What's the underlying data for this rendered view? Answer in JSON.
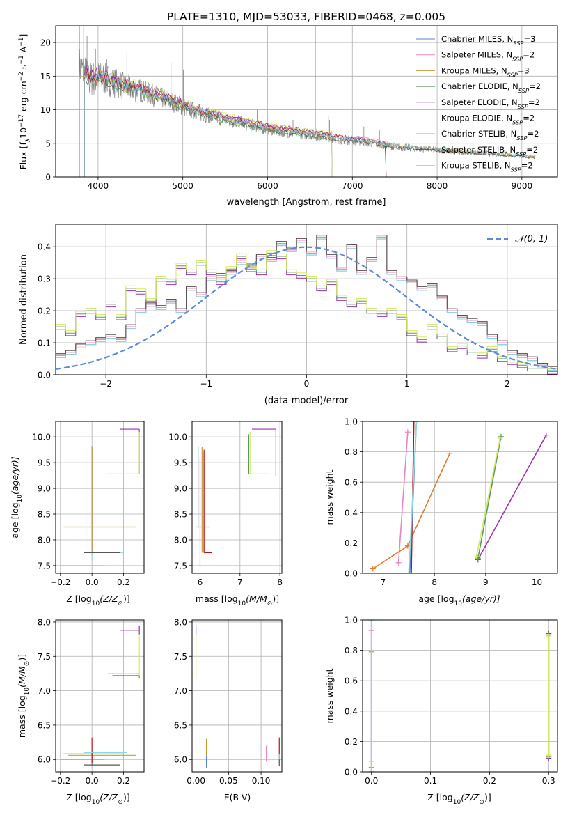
{
  "figure_title": "PLATE=1310, MJD=53033, FIBERID=0468, z=0.005",
  "colors": {
    "s0": "#5a82c8",
    "s1": "#e885c5",
    "s2": "#c89a3a",
    "s3": "#5a9a5a",
    "s4": "#9b30b0",
    "s5": "#d8e860",
    "s6": "#555555",
    "s7": "#b01818",
    "s8": "#8ed8e0",
    "data": "#808080",
    "gauss": "#5a8ad8",
    "orange": "#e07830"
  },
  "chart_data": [
    {
      "id": "spectrum",
      "type": "line",
      "xlabel": "wavelength [Angstrom, rest frame]",
      "ylabel_main": "Flux [f",
      "ylabel_sub": "λ",
      "ylabel_rest": "10",
      "ylabel_exp": "−17",
      "ylabel_unit": " erg cm",
      "ylabel_unit_exp": "−2",
      "ylabel_unit2": " s",
      "ylabel_unit2_exp": "−1",
      "ylabel_unit3": " A",
      "ylabel_unit3_exp": "−1",
      "ylabel_close": "]",
      "xlim": [
        3500,
        9420
      ],
      "ylim": [
        0,
        22.5
      ],
      "xticks": [
        4000,
        5000,
        6000,
        7000,
        8000,
        9000
      ],
      "yticks": [
        0,
        5,
        10,
        15,
        20
      ],
      "legend_position": "top-right",
      "legend": [
        {
          "prefix": "Chabrier MILES, N",
          "sub": "SSP",
          "suffix": "=3"
        },
        {
          "prefix": "Salpeter MILES, N",
          "sub": "SSP",
          "suffix": "=2"
        },
        {
          "prefix": "Kroupa MILES, N",
          "sub": "SSP",
          "suffix": "=3"
        },
        {
          "prefix": "Chabrier ELODIE, N",
          "sub": "SSP",
          "suffix": "=2"
        },
        {
          "prefix": "Salpeter ELODIE, N",
          "sub": "SSP",
          "suffix": "=2"
        },
        {
          "prefix": "Kroupa ELODIE, N",
          "sub": "SSP",
          "suffix": "=2"
        },
        {
          "prefix": "Chabrier STELIB, N",
          "sub": "SSP",
          "suffix": "=2"
        },
        {
          "prefix": "Salpeter STELIB, N",
          "sub": "SSP",
          "suffix": "=2"
        },
        {
          "prefix": "Kroupa STELIB, N",
          "sub": "SSP",
          "suffix": "=2"
        }
      ],
      "continuum": [
        [
          3780,
          16.5
        ],
        [
          3900,
          14.5
        ],
        [
          4000,
          14.8
        ],
        [
          4100,
          14.5
        ],
        [
          4300,
          13.5
        ],
        [
          4500,
          12.8
        ],
        [
          4700,
          12.0
        ],
        [
          4900,
          11.0
        ],
        [
          5100,
          10.0
        ],
        [
          5300,
          9.2
        ],
        [
          5500,
          8.5
        ],
        [
          5700,
          8.0
        ],
        [
          5900,
          7.4
        ],
        [
          6100,
          6.9
        ],
        [
          6300,
          6.6
        ],
        [
          6500,
          6.3
        ],
        [
          6700,
          6.0
        ],
        [
          6900,
          5.5
        ],
        [
          7100,
          5.3
        ],
        [
          7300,
          4.9
        ],
        [
          7500,
          4.5
        ],
        [
          7800,
          4.2
        ],
        [
          8200,
          3.8
        ],
        [
          8600,
          3.5
        ],
        [
          9000,
          3.1
        ],
        [
          9160,
          2.9
        ]
      ],
      "noise_amp": [
        [
          3780,
          3.0
        ],
        [
          4500,
          1.8
        ],
        [
          5500,
          1.1
        ],
        [
          7000,
          0.7
        ],
        [
          9160,
          0.3
        ]
      ],
      "emission_lines": [
        [
          3800,
          22.5
        ],
        [
          3830,
          22.5
        ],
        [
          3870,
          21.0
        ],
        [
          3970,
          19.0
        ],
        [
          4102,
          17.5
        ],
        [
          4340,
          18.5
        ],
        [
          4861,
          17.0
        ],
        [
          4959,
          11.5
        ],
        [
          5007,
          16.0
        ],
        [
          5876,
          10.0
        ],
        [
          6300,
          8.5
        ],
        [
          6563,
          22.5
        ],
        [
          6583,
          20.5
        ],
        [
          6717,
          9.0
        ],
        [
          6731,
          8.5
        ],
        [
          7136,
          7.5
        ],
        [
          7320,
          7.0
        ]
      ],
      "model_ranges": [
        [
          3840,
          7400
        ],
        [
          3840,
          7400
        ],
        [
          3840,
          9160
        ],
        [
          3840,
          6760
        ],
        [
          3840,
          6760
        ],
        [
          3840,
          6760
        ],
        [
          3840,
          9160
        ],
        [
          3840,
          7400
        ],
        [
          3840,
          9160
        ]
      ],
      "model_offsets": [
        0.3,
        0.5,
        0.1,
        -0.2,
        0.6,
        0.7,
        -0.1,
        0.4,
        0.2
      ]
    },
    {
      "id": "residuals",
      "type": "step-histogram",
      "xlabel": "(data-model)/error",
      "ylabel": "Normed distribution",
      "xlim": [
        -2.5,
        2.5
      ],
      "ylim": [
        0,
        0.47
      ],
      "xticks": [
        -2,
        -1,
        0,
        1,
        2
      ],
      "yticks": [
        0.0,
        0.1,
        0.2,
        0.3,
        0.4
      ],
      "legend_position": "top-right",
      "legend_label": "𝒩(0, 1)",
      "bin_edges_start": -2.5,
      "bin_width": 0.1,
      "hist_groupA": [
        0.06,
        0.07,
        0.09,
        0.1,
        0.11,
        0.12,
        0.11,
        0.15,
        0.2,
        0.22,
        0.21,
        0.23,
        0.2,
        0.27,
        0.25,
        0.3,
        0.31,
        0.32,
        0.35,
        0.34,
        0.37,
        0.36,
        0.41,
        0.39,
        0.42,
        0.38,
        0.43,
        0.37,
        0.33,
        0.4,
        0.32,
        0.36,
        0.43,
        0.32,
        0.3,
        0.29,
        0.27,
        0.28,
        0.24,
        0.2,
        0.18,
        0.17,
        0.16,
        0.12,
        0.1,
        0.07,
        0.06,
        0.05,
        0.03,
        0.02
      ],
      "hist_groupB": [
        0.15,
        0.13,
        0.19,
        0.2,
        0.18,
        0.22,
        0.18,
        0.27,
        0.26,
        0.23,
        0.3,
        0.29,
        0.34,
        0.32,
        0.35,
        0.32,
        0.29,
        0.33,
        0.37,
        0.33,
        0.32,
        0.38,
        0.37,
        0.32,
        0.31,
        0.3,
        0.27,
        0.29,
        0.24,
        0.22,
        0.23,
        0.2,
        0.19,
        0.2,
        0.18,
        0.13,
        0.11,
        0.15,
        0.12,
        0.08,
        0.09,
        0.07,
        0.06,
        0.08,
        0.05,
        0.04,
        0.03,
        0.02,
        0.02,
        0.01
      ]
    },
    {
      "id": "age_vs_Z",
      "type": "errorbar",
      "xlabel_main": "Z [log",
      "xlabel_sub": "10",
      "xlabel_rest": "(Z/Z",
      "xlabel_sun": "⊙",
      "xlabel_close": ")]",
      "ylabel_main": "age  [log",
      "ylabel_sub": "10",
      "ylabel_rest": "(age/yr)]",
      "xlim": [
        -0.23,
        0.33
      ],
      "ylim": [
        7.35,
        10.3
      ],
      "xticks": [
        -0.2,
        0.0,
        0.2
      ],
      "yticks": [
        7.5,
        8.0,
        8.5,
        9.0,
        9.5,
        10.0
      ],
      "bars": [
        {
          "c": "s0",
          "x": 0.0,
          "y": 9.82,
          "xl": 0.0,
          "xh": 0.0,
          "yl": 7.75,
          "yh": 9.82
        },
        {
          "c": "s2",
          "x": 0.0,
          "y": 8.25,
          "xl": -0.18,
          "xh": 0.28,
          "yl": 7.7,
          "yh": 9.8
        },
        {
          "c": "s1",
          "x": 0.0,
          "y": 7.5,
          "xl": -0.2,
          "xh": 0.08,
          "yl": 7.5,
          "yh": 7.5
        },
        {
          "c": "s8",
          "x": 0.0,
          "y": 7.75,
          "xl": -0.05,
          "xh": 0.2,
          "yl": 7.6,
          "yh": 7.75
        },
        {
          "c": "s4",
          "x": 0.3,
          "y": 10.15,
          "xl": 0.18,
          "xh": 0.3,
          "yl": 9.28,
          "yh": 10.15
        },
        {
          "c": "s5",
          "x": 0.3,
          "y": 9.28,
          "xl": 0.1,
          "xh": 0.3,
          "yl": 9.28,
          "yh": 10.1
        },
        {
          "c": "s6",
          "x": 0.0,
          "y": 7.75,
          "xl": -0.05,
          "xh": 0.18,
          "yl": 7.75,
          "yh": 7.75
        }
      ]
    },
    {
      "id": "age_vs_mass",
      "type": "errorbar",
      "xlabel_main": "mass [log",
      "xlabel_sub": "10",
      "xlabel_rest": "(M/M",
      "xlabel_sun": "⊙",
      "xlabel_close": ")]",
      "xlim": [
        5.8,
        8.05
      ],
      "ylim": [
        7.35,
        10.3
      ],
      "xticks": [
        6,
        7,
        8
      ],
      "yticks": [
        7.5,
        8.0,
        8.5,
        9.0,
        9.5,
        10.0
      ],
      "bars": [
        {
          "c": "s0",
          "x": 5.95,
          "y": 9.82,
          "xl": 5.95,
          "xh": 5.95,
          "yl": 8.25,
          "yh": 9.82
        },
        {
          "c": "s2",
          "x": 6.05,
          "y": 8.25,
          "xl": 5.9,
          "xh": 6.25,
          "yl": 7.75,
          "yh": 9.8
        },
        {
          "c": "s1",
          "x": 6.0,
          "y": 7.5,
          "xl": 6.0,
          "xh": 6.0,
          "yl": 7.5,
          "yh": 9.6
        },
        {
          "c": "s7",
          "x": 6.1,
          "y": 7.75,
          "xl": 6.1,
          "xh": 6.3,
          "yl": 7.75,
          "yh": 9.75
        },
        {
          "c": "s8",
          "x": 6.08,
          "y": 9.7,
          "xl": 6.08,
          "xh": 6.08,
          "yl": 7.75,
          "yh": 9.7
        },
        {
          "c": "s4",
          "x": 7.9,
          "y": 10.15,
          "xl": 7.3,
          "xh": 7.9,
          "yl": 9.25,
          "yh": 10.15
        },
        {
          "c": "s5",
          "x": 7.25,
          "y": 9.28,
          "xl": 7.25,
          "xh": 7.75,
          "yl": 9.28,
          "yh": 10.1
        },
        {
          "c": "s3",
          "x": 7.22,
          "y": 10.0,
          "xl": 7.22,
          "xh": 7.22,
          "yl": 9.28,
          "yh": 10.05
        }
      ]
    },
    {
      "id": "weight_vs_age",
      "type": "line",
      "xlabel_main": "age  [log",
      "xlabel_sub": "10",
      "xlabel_rest": "(age/yr)]",
      "ylabel": "mass weight",
      "xlim": [
        6.6,
        10.4
      ],
      "ylim": [
        0,
        1
      ],
      "xticks": [
        7,
        8,
        9,
        10
      ],
      "yticks": [
        0.0,
        0.2,
        0.4,
        0.6,
        0.8,
        1.0
      ],
      "lines": [
        {
          "c": "s1",
          "pts": [
            [
              7.3,
              0.07
            ],
            [
              7.48,
              0.93
            ]
          ]
        },
        {
          "c": "orange",
          "pts": [
            [
              6.8,
              0.03
            ],
            [
              7.48,
              0.18
            ],
            [
              8.3,
              0.79
            ]
          ]
        },
        {
          "c": "s7",
          "pts": [
            [
              7.55,
              0.0
            ],
            [
              7.6,
              1.0
            ]
          ]
        },
        {
          "c": "s0",
          "pts": [
            [
              7.52,
              0.0
            ],
            [
              7.65,
              1.0
            ]
          ]
        },
        {
          "c": "s8",
          "pts": [
            [
              7.5,
              0.0
            ],
            [
              7.65,
              1.0
            ]
          ]
        },
        {
          "c": "s4",
          "pts": [
            [
              8.85,
              0.09
            ],
            [
              10.18,
              0.91
            ]
          ]
        },
        {
          "c": "s3",
          "pts": [
            [
              8.85,
              0.1
            ],
            [
              9.3,
              0.9
            ]
          ]
        },
        {
          "c": "s5",
          "pts": [
            [
              8.82,
              0.11
            ],
            [
              9.28,
              0.89
            ]
          ]
        }
      ]
    },
    {
      "id": "mass_vs_Z",
      "type": "errorbar",
      "xlabel_main": "Z [log",
      "xlabel_sub": "10",
      "xlabel_rest": "(Z/Z",
      "xlabel_sun": "⊙",
      "xlabel_close": ")]",
      "ylabel_main": "mass [log",
      "ylabel_sub": "10",
      "ylabel_rest": "(M/M",
      "ylabel_sun": "⊙",
      "ylabel_close": ")]",
      "xlim": [
        -0.23,
        0.33
      ],
      "ylim": [
        5.82,
        8.03
      ],
      "xticks": [
        -0.2,
        0.0,
        0.2
      ],
      "yticks": [
        6.0,
        6.5,
        7.0,
        7.5,
        8.0
      ],
      "bars": [
        {
          "c": "s0",
          "x": 0.0,
          "y": 6.08,
          "xl": -0.18,
          "xh": 0.2,
          "yl": 5.9,
          "yh": 6.1
        },
        {
          "c": "s2",
          "x": 0.0,
          "y": 6.06,
          "xl": -0.15,
          "xh": 0.28,
          "yl": 6.0,
          "yh": 6.1
        },
        {
          "c": "s1",
          "x": 0.0,
          "y": 6.0,
          "xl": -0.2,
          "xh": 0.08,
          "yl": 6.0,
          "yh": 6.0
        },
        {
          "c": "s7",
          "x": 0.0,
          "y": 6.1,
          "xl": -0.05,
          "xh": 0.1,
          "yl": 5.95,
          "yh": 6.32
        },
        {
          "c": "s8",
          "x": 0.0,
          "y": 6.1,
          "xl": -0.05,
          "xh": 0.22,
          "yl": 6.1,
          "yh": 6.1
        },
        {
          "c": "s6",
          "x": 0.0,
          "y": 5.92,
          "xl": -0.05,
          "xh": 0.18,
          "yl": 5.92,
          "yh": 5.92
        },
        {
          "c": "s4",
          "x": 0.3,
          "y": 7.88,
          "xl": 0.18,
          "xh": 0.3,
          "yl": 7.82,
          "yh": 7.95
        },
        {
          "c": "s5",
          "x": 0.3,
          "y": 7.25,
          "xl": 0.1,
          "xh": 0.3,
          "yl": 7.2,
          "yh": 7.8
        },
        {
          "c": "s3",
          "x": 0.3,
          "y": 7.22,
          "xl": 0.13,
          "xh": 0.3,
          "yl": 7.18,
          "yh": 7.22
        }
      ]
    },
    {
      "id": "mass_vs_EBV",
      "type": "errorbar",
      "xlabel": "E(B-V)",
      "xlim": [
        -0.006,
        0.132
      ],
      "ylim": [
        5.82,
        8.03
      ],
      "xticks": [
        0.0,
        0.05,
        0.1
      ],
      "yticks": [
        6.0,
        6.5,
        7.0,
        7.5,
        8.0
      ],
      "bars": [
        {
          "c": "s0",
          "x": 0.016,
          "y": 6.0,
          "xl": 0.016,
          "xh": 0.016,
          "yl": 5.88,
          "yh": 6.1
        },
        {
          "c": "s2",
          "x": 0.016,
          "y": 6.1,
          "xl": 0.016,
          "xh": 0.016,
          "yl": 6.05,
          "yh": 6.3
        },
        {
          "c": "s1",
          "x": 0.108,
          "y": 6.05,
          "xl": 0.108,
          "xh": 0.108,
          "yl": 5.97,
          "yh": 6.2
        },
        {
          "c": "s7",
          "x": 0.128,
          "y": 6.15,
          "xl": 0.128,
          "xh": 0.128,
          "yl": 6.0,
          "yh": 6.32
        },
        {
          "c": "s8",
          "x": 0.128,
          "y": 6.02,
          "xl": 0.128,
          "xh": 0.128,
          "yl": 5.95,
          "yh": 6.08
        },
        {
          "c": "s6",
          "x": 0.128,
          "y": 5.95,
          "xl": 0.128,
          "xh": 0.128,
          "yl": 5.9,
          "yh": 6.0
        },
        {
          "c": "s4",
          "x": 0.0,
          "y": 7.88,
          "xl": 0.0,
          "xh": 0.0,
          "yl": 7.82,
          "yh": 7.95
        },
        {
          "c": "s5",
          "x": 0.0,
          "y": 7.5,
          "xl": 0.0,
          "xh": 0.0,
          "yl": 7.2,
          "yh": 7.8
        }
      ]
    },
    {
      "id": "weight_vs_Z",
      "type": "errorbar",
      "xlabel_main": "Z [log",
      "xlabel_sub": "10",
      "xlabel_rest": "(Z/Z",
      "xlabel_sun": "⊙",
      "xlabel_close": ")]",
      "ylabel": "mass weight",
      "xlim": [
        -0.015,
        0.315
      ],
      "ylim": [
        0,
        1
      ],
      "xticks": [
        0.0,
        0.1,
        0.2,
        0.3
      ],
      "yticks": [
        0.0,
        0.2,
        0.4,
        0.6,
        0.8,
        1.0
      ],
      "lines": [
        {
          "c": "s2",
          "pts": [
            [
              0.0,
              0.03
            ],
            [
              0.0,
              0.79
            ]
          ]
        },
        {
          "c": "s0",
          "pts": [
            [
              0.0,
              0.0
            ],
            [
              0.0,
              1.0
            ]
          ]
        },
        {
          "c": "s1",
          "pts": [
            [
              0.0,
              0.07
            ],
            [
              0.0,
              0.93
            ]
          ]
        },
        {
          "c": "s8",
          "pts": [
            [
              0.0,
              0.0
            ],
            [
              0.0,
              1.0
            ]
          ]
        },
        {
          "c": "s4",
          "pts": [
            [
              0.3,
              0.09
            ],
            [
              0.3,
              0.91
            ]
          ]
        },
        {
          "c": "s3",
          "pts": [
            [
              0.3,
              0.1
            ],
            [
              0.3,
              0.9
            ]
          ]
        },
        {
          "c": "s5",
          "pts": [
            [
              0.3,
              0.11
            ],
            [
              0.3,
              0.89
            ]
          ]
        }
      ]
    }
  ]
}
